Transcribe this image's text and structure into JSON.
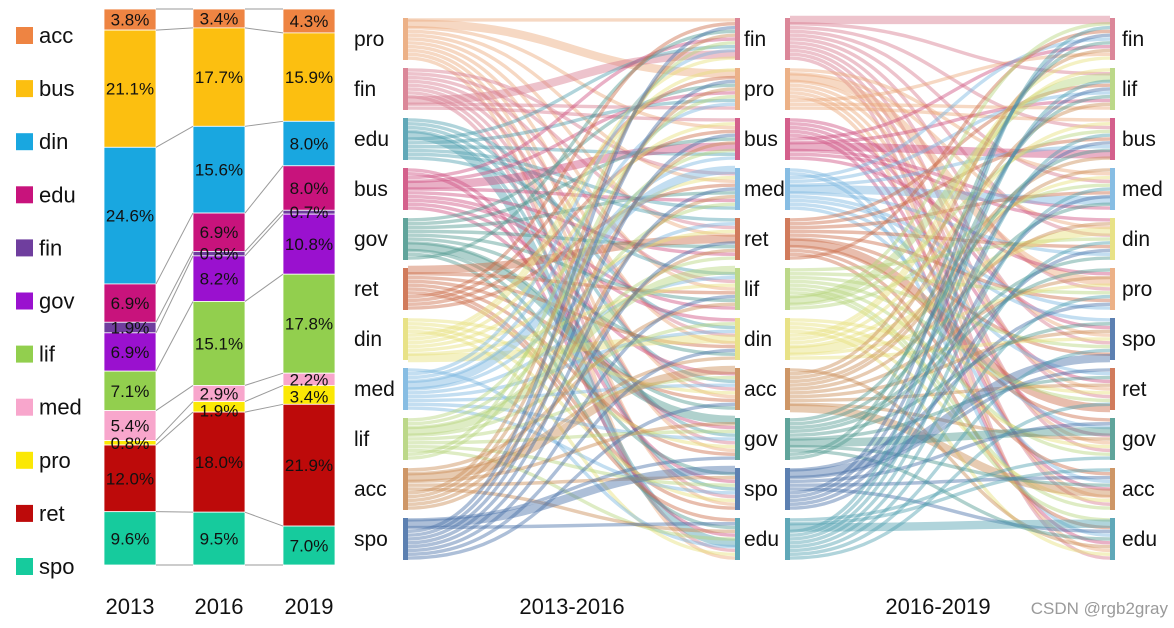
{
  "watermark": "CSDN @rgb2gray",
  "chart_data": [
    {
      "type": "bar",
      "subtype": "stacked-100-percent",
      "categories": [
        "2013",
        "2016",
        "2019"
      ],
      "legend_order": [
        "acc",
        "bus",
        "din",
        "edu",
        "fin",
        "gov",
        "lif",
        "med",
        "pro",
        "ret",
        "spo"
      ],
      "colors": {
        "acc": "#ee8442",
        "bus": "#fcbf10",
        "din": "#19a7e0",
        "edu": "#c8137c",
        "fin": "#6f3e9e",
        "gov": "#9a11cf",
        "lif": "#92cf4e",
        "med": "#f8a6cc",
        "pro": "#fbe805",
        "ret": "#bd0a0a",
        "spo": "#16cb9d"
      },
      "stacks": {
        "2013": [
          {
            "cat": "acc",
            "value": 3.8,
            "label": "3.8%"
          },
          {
            "cat": "bus",
            "value": 21.1,
            "label": "21.1%"
          },
          {
            "cat": "din",
            "value": 24.6,
            "label": "24.6%"
          },
          {
            "cat": "edu",
            "value": 6.9,
            "label": "6.9%"
          },
          {
            "cat": "fin",
            "value": 1.9,
            "label": "1.9%"
          },
          {
            "cat": "gov",
            "value": 6.9,
            "label": "6.9%"
          },
          {
            "cat": "lif",
            "value": 7.1,
            "label": "7.1%"
          },
          {
            "cat": "med",
            "value": 5.4,
            "label": "5.4%"
          },
          {
            "cat": "pro",
            "value": 0.8,
            "label": "0.8%"
          },
          {
            "cat": "ret",
            "value": 12.0,
            "label": "12.0%"
          },
          {
            "cat": "spo",
            "value": 9.6,
            "label": "9.6%"
          }
        ],
        "2016": [
          {
            "cat": "acc",
            "value": 3.4,
            "label": "3.4%"
          },
          {
            "cat": "bus",
            "value": 17.7,
            "label": "17.7%"
          },
          {
            "cat": "din",
            "value": 15.6,
            "label": "15.6%"
          },
          {
            "cat": "edu",
            "value": 6.9,
            "label": "6.9%"
          },
          {
            "cat": "fin",
            "value": 0.8,
            "label": "0.8%"
          },
          {
            "cat": "gov",
            "value": 8.2,
            "label": "8.2%"
          },
          {
            "cat": "lif",
            "value": 15.1,
            "label": "15.1%"
          },
          {
            "cat": "med",
            "value": 2.9,
            "label": "2.9%"
          },
          {
            "cat": "pro",
            "value": 1.9,
            "label": "1.9%"
          },
          {
            "cat": "ret",
            "value": 18.0,
            "label": "18.0%"
          },
          {
            "cat": "spo",
            "value": 9.5,
            "label": "9.5%"
          }
        ],
        "2019": [
          {
            "cat": "acc",
            "value": 4.3,
            "label": "4.3%"
          },
          {
            "cat": "bus",
            "value": 15.9,
            "label": "15.9%"
          },
          {
            "cat": "din",
            "value": 8.0,
            "label": "8.0%"
          },
          {
            "cat": "edu",
            "value": 8.0,
            "label": "8.0%"
          },
          {
            "cat": "fin",
            "value": 0.7,
            "label": "0.7%"
          },
          {
            "cat": "gov",
            "value": 10.8,
            "label": "10.8%"
          },
          {
            "cat": "lif",
            "value": 17.8,
            "label": "17.8%"
          },
          {
            "cat": "med",
            "value": 2.2,
            "label": "2.2%"
          },
          {
            "cat": "pro",
            "value": 3.4,
            "label": "3.4%"
          },
          {
            "cat": "ret",
            "value": 21.9,
            "label": "21.9%"
          },
          {
            "cat": "spo",
            "value": 7.0,
            "label": "7.0%"
          }
        ]
      }
    },
    {
      "type": "sankey",
      "title": "2013-2016",
      "left_nodes": [
        "pro",
        "fin",
        "edu",
        "bus",
        "gov",
        "ret",
        "din",
        "med",
        "lif",
        "acc",
        "spo"
      ],
      "right_nodes": [
        "fin",
        "pro",
        "bus",
        "med",
        "ret",
        "lif",
        "din",
        "acc",
        "gov",
        "spo",
        "edu"
      ]
    },
    {
      "type": "sankey",
      "title": "2016-2019",
      "left_nodes": [
        "fin",
        "pro",
        "bus",
        "med",
        "ret",
        "lif",
        "din",
        "acc",
        "gov",
        "spo",
        "edu"
      ],
      "right_nodes": [
        "fin",
        "lif",
        "bus",
        "med",
        "din",
        "pro",
        "spo",
        "ret",
        "gov",
        "acc",
        "edu"
      ]
    }
  ]
}
